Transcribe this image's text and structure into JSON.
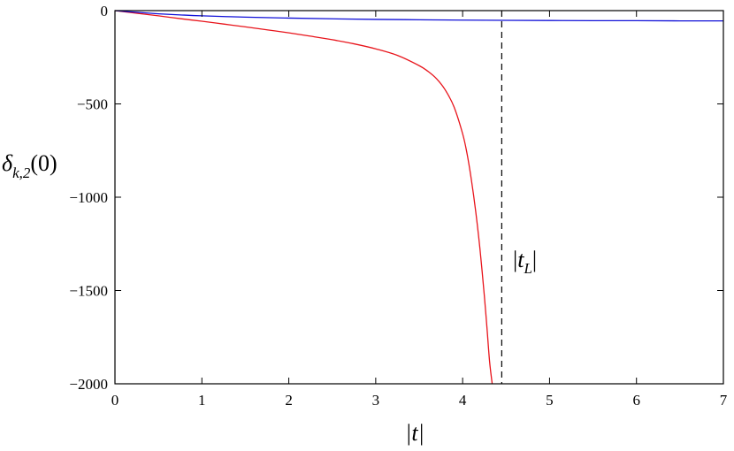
{
  "chart_data": {
    "type": "line",
    "title": "",
    "xlabel": "|t|",
    "ylabel": "δk,2(0)",
    "ylabel_parts": {
      "main": "δ",
      "sub": "k,2",
      "suffix": "(0)"
    },
    "xlim": [
      0,
      7
    ],
    "ylim": [
      -2000,
      0
    ],
    "x_ticks": [
      0,
      1,
      2,
      3,
      4,
      5,
      6,
      7
    ],
    "x_tick_labels": [
      "0",
      "1",
      "2",
      "3",
      "4",
      "5",
      "6",
      "7"
    ],
    "y_ticks": [
      0,
      -500,
      -1000,
      -1500,
      -2000
    ],
    "y_tick_labels": [
      "0",
      "−500",
      "−1000",
      "−1500",
      "−2000"
    ],
    "grid": false,
    "legend": "none",
    "series": [
      {
        "color": "#e8141b",
        "x": [
          0,
          0.1,
          0.25,
          0.5,
          0.75,
          1,
          1.25,
          1.5,
          1.75,
          2,
          2.25,
          2.5,
          2.75,
          3,
          3.25,
          3.5,
          3.6,
          3.7,
          3.8,
          3.9,
          4.0,
          4.05,
          4.1,
          4.15,
          4.2,
          4.25,
          4.28,
          4.31,
          4.34
        ],
        "y": [
          0,
          -6,
          -14,
          -28,
          -43,
          -57,
          -72,
          -87,
          -103,
          -119,
          -137,
          -156,
          -178,
          -205,
          -240,
          -295,
          -325,
          -365,
          -425,
          -515,
          -660,
          -765,
          -905,
          -1075,
          -1280,
          -1530,
          -1700,
          -1880,
          -2000
        ]
      },
      {
        "color": "#1010d8",
        "x": [
          0,
          0.25,
          0.5,
          0.75,
          1,
          1.5,
          2,
          2.5,
          3,
          3.5,
          4,
          4.5,
          5,
          5.5,
          6,
          6.5,
          7
        ],
        "y": [
          0,
          -9,
          -17,
          -23,
          -28,
          -35,
          -40,
          -44,
          -47,
          -49,
          -51,
          -52,
          -53,
          -54,
          -54,
          -55,
          -55
        ]
      }
    ],
    "vline": {
      "x": 4.45,
      "label": "|tL|",
      "label_parts": {
        "main": "t",
        "sub": "L"
      },
      "style": "dashed",
      "color": "#000000"
    }
  }
}
